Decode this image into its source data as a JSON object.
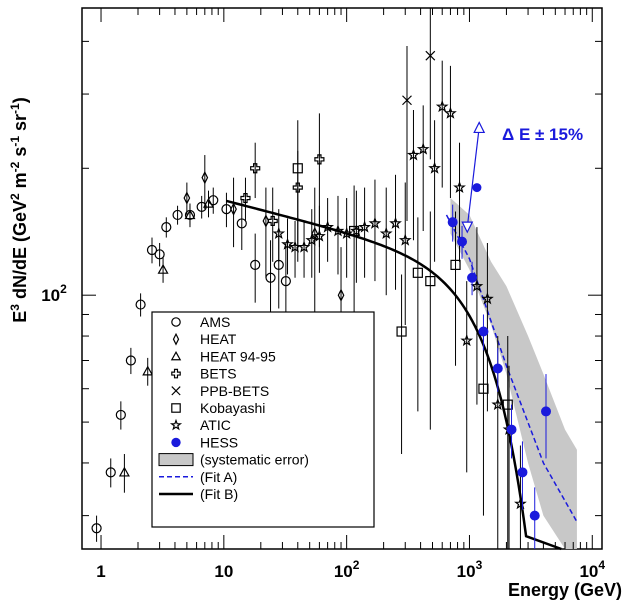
{
  "chart_data": {
    "type": "scatter",
    "title": "",
    "xlabel": "Energy (GeV)",
    "ylabel": "E^3 dN/dE (GeV^2 m^-2 s^-1 sr^-1)",
    "ylabel_parts": {
      "E": "E",
      "exp3": "3",
      "body": " dN/dE (GeV",
      "exp2": "2",
      "m": " m",
      "expm2": "-2",
      "s": " s",
      "expm1a": "-1",
      "sr": " sr",
      "expm1b": "-1",
      "close": ")"
    },
    "x_scale": "log",
    "y_scale": "log",
    "xlim": [
      0.7,
      12000
    ],
    "ylim": [
      25,
      480
    ],
    "x_ticks": [
      {
        "base": "1",
        "exp": ""
      },
      {
        "base": "10",
        "exp": ""
      },
      {
        "base": "10",
        "exp": "2"
      },
      {
        "base": "10",
        "exp": "3"
      },
      {
        "base": "10",
        "exp": "4"
      }
    ],
    "x_tick_values": [
      1,
      10,
      100,
      1000,
      10000
    ],
    "y_ticks": [
      {
        "base": "10",
        "exp": "2",
        "value": 100
      }
    ],
    "grid": false,
    "legend_position": "bottom-left",
    "annotation": {
      "text": "Δ E ± 15%",
      "color": "#1a1adc"
    },
    "series": [
      {
        "name": "AMS",
        "marker": "circle-open",
        "color": "#000000",
        "points": [
          [
            0.92,
            28,
            2,
            2
          ],
          [
            1.2,
            38,
            3,
            3
          ],
          [
            1.45,
            52,
            4,
            4
          ],
          [
            1.75,
            70,
            5,
            5
          ],
          [
            2.1,
            95,
            6,
            6
          ],
          [
            2.6,
            128,
            9,
            9
          ],
          [
            3.0,
            125,
            8,
            8
          ],
          [
            3.4,
            145,
            8,
            8
          ],
          [
            4.2,
            155,
            8,
            8
          ],
          [
            5.3,
            155,
            8,
            8
          ],
          [
            6.6,
            162,
            10,
            10
          ],
          [
            8.2,
            168,
            12,
            12
          ],
          [
            10.5,
            160,
            15,
            15
          ],
          [
            14,
            148,
            20,
            20
          ],
          [
            18,
            118,
            22,
            22
          ],
          [
            24,
            110,
            25,
            25
          ],
          [
            28,
            118,
            25,
            25
          ],
          [
            32,
            108,
            25,
            25
          ]
        ]
      },
      {
        "name": "HEAT",
        "marker": "diamond-open",
        "color": "#000000",
        "points": [
          [
            5.0,
            170,
            15,
            15
          ],
          [
            7.0,
            190,
            30,
            25
          ],
          [
            12,
            160,
            30,
            30
          ],
          [
            22,
            150,
            40,
            30
          ],
          [
            55,
            140,
            60,
            40
          ],
          [
            90,
            100,
            40,
            30
          ]
        ]
      },
      {
        "name": "HEAT 94-95",
        "marker": "triangle-open",
        "color": "#000000",
        "points": [
          [
            1.55,
            38,
            4,
            4
          ],
          [
            2.4,
            66,
            5,
            5
          ],
          [
            3.2,
            115,
            8,
            8
          ],
          [
            5.3,
            155,
            10,
            10
          ],
          [
            7.5,
            165,
            12,
            12
          ]
        ]
      },
      {
        "name": "BETS",
        "marker": "cross-open",
        "color": "#000000",
        "points": [
          [
            15,
            170,
            20,
            20
          ],
          [
            18,
            200,
            30,
            30
          ],
          [
            25,
            150,
            30,
            30
          ],
          [
            40,
            180,
            50,
            40
          ],
          [
            60,
            210,
            80,
            60
          ]
        ]
      },
      {
        "name": "PPB-BETS",
        "marker": "x",
        "color": "#000000",
        "points": [
          [
            310,
            290,
            140,
            100
          ],
          [
            480,
            370,
            160,
            120
          ]
        ]
      },
      {
        "name": "Kobayashi",
        "marker": "square-open",
        "color": "#000000",
        "points": [
          [
            40,
            200,
            80,
            60
          ],
          [
            115,
            142,
            60,
            40
          ],
          [
            380,
            113,
            60,
            40
          ],
          [
            480,
            108,
            60,
            50
          ],
          [
            280,
            82,
            40,
            30
          ],
          [
            770,
            118,
            50,
            40
          ],
          [
            1300,
            60,
            30,
            20
          ],
          [
            2050,
            55,
            30,
            25
          ]
        ]
      },
      {
        "name": "ATIC",
        "marker": "star-open",
        "color": "#000000",
        "points": [
          [
            28,
            140,
            20,
            20
          ],
          [
            33,
            132,
            20,
            20
          ],
          [
            38,
            130,
            20,
            20
          ],
          [
            45,
            130,
            20,
            20
          ],
          [
            52,
            135,
            25,
            25
          ],
          [
            60,
            138,
            25,
            25
          ],
          [
            70,
            145,
            25,
            25
          ],
          [
            85,
            142,
            30,
            30
          ],
          [
            100,
            140,
            30,
            30
          ],
          [
            120,
            142,
            35,
            35
          ],
          [
            140,
            145,
            35,
            35
          ],
          [
            170,
            148,
            40,
            40
          ],
          [
            210,
            140,
            40,
            40
          ],
          [
            250,
            148,
            45,
            45
          ],
          [
            300,
            135,
            50,
            50
          ],
          [
            350,
            215,
            80,
            60
          ],
          [
            420,
            222,
            80,
            60
          ],
          [
            520,
            200,
            80,
            60
          ],
          [
            600,
            280,
            100,
            80
          ],
          [
            700,
            270,
            100,
            80
          ],
          [
            830,
            180,
            60,
            50
          ],
          [
            950,
            78,
            40,
            30
          ],
          [
            1150,
            105,
            50,
            40
          ],
          [
            1400,
            98,
            45,
            35
          ],
          [
            1700,
            55,
            30,
            25
          ],
          [
            2100,
            48,
            25,
            20
          ],
          [
            2600,
            32,
            15,
            12
          ]
        ]
      },
      {
        "name": "HESS",
        "marker": "circle-filled",
        "color": "#1a1adc",
        "points": [
          [
            730,
            149,
            15,
            15
          ],
          [
            870,
            134,
            12,
            12
          ],
          [
            1050,
            110,
            10,
            10
          ],
          [
            1300,
            82,
            8,
            8
          ],
          [
            1700,
            67,
            8,
            8
          ],
          [
            2200,
            48,
            7,
            7
          ],
          [
            2700,
            38,
            7,
            7
          ],
          [
            3400,
            30,
            5,
            5
          ],
          [
            4200,
            53,
            12,
            12
          ]
        ]
      }
    ],
    "systematic_band": {
      "name": "(systematic error)",
      "color": "#c8c8c8",
      "upper": [
        [
          700,
          170
        ],
        [
          1000,
          155
        ],
        [
          1500,
          120
        ],
        [
          2000,
          105
        ],
        [
          3000,
          80
        ],
        [
          4000,
          65
        ],
        [
          6000,
          48
        ],
        [
          7500,
          43
        ]
      ],
      "lower": [
        [
          700,
          140
        ],
        [
          1000,
          115
        ],
        [
          1500,
          85
        ],
        [
          2000,
          65
        ],
        [
          3000,
          40
        ],
        [
          4000,
          30
        ],
        [
          6000,
          25
        ],
        [
          7500,
          25
        ]
      ]
    },
    "fit_a": {
      "name": "(Fit A)",
      "color": "#1a1adc",
      "style": "dashed",
      "points": [
        [
          650,
          155
        ],
        [
          1000,
          122
        ],
        [
          2000,
          68
        ],
        [
          4000,
          40
        ],
        [
          7500,
          29
        ]
      ]
    },
    "fit_b": {
      "name": "(Fit B)",
      "color": "#000000",
      "style": "solid"
    },
    "energy_shift": {
      "center": [
        1150,
        180
      ],
      "upper": [
        1200,
        250
      ],
      "lower": [
        960,
        145
      ]
    }
  }
}
